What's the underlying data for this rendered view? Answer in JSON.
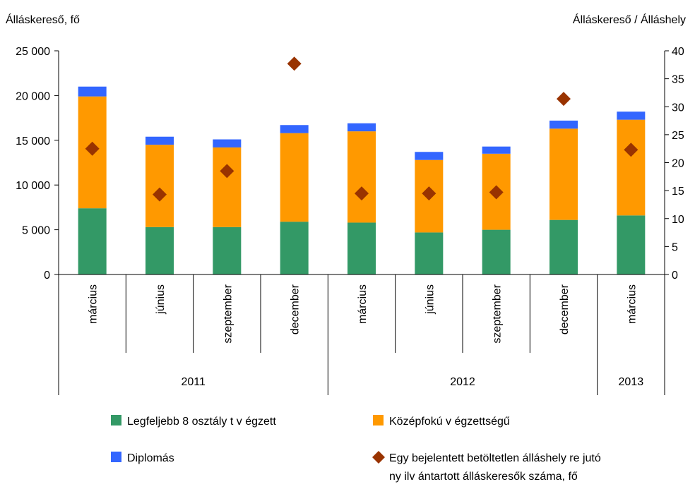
{
  "chart_data": {
    "type": "bar",
    "stacked": true,
    "y_left_label": "Álláskereső, fő",
    "y_right_label": "Álláskereső / Álláshely",
    "y_left_lim": [
      0,
      25000
    ],
    "y_left_ticks": [
      0,
      5000,
      10000,
      15000,
      20000,
      25000
    ],
    "y_left_tick_labels": [
      "0",
      "5 000",
      "10 000",
      "15 000",
      "20 000",
      "25 000"
    ],
    "y_right_lim": [
      0,
      40
    ],
    "y_right_ticks": [
      0,
      5,
      10,
      15,
      20,
      25,
      30,
      35,
      40
    ],
    "y_right_tick_labels": [
      "0",
      "5",
      "10",
      "15",
      "20",
      "25",
      "30",
      "35",
      "40"
    ],
    "categories": [
      "március",
      "június",
      "szeptember",
      "december",
      "március",
      "június",
      "szeptember",
      "december",
      "március"
    ],
    "year_groups": [
      {
        "label": "2011",
        "count": 4
      },
      {
        "label": "2012",
        "count": 4
      },
      {
        "label": "2013",
        "count": 1
      }
    ],
    "series": [
      {
        "name": "Legfeljebb 8 osztályt végzett",
        "color": "#339966",
        "axis": "left",
        "kind": "bar",
        "values": [
          7400,
          5300,
          5300,
          5900,
          5800,
          4700,
          5000,
          6100,
          6600
        ]
      },
      {
        "name": "Középfokú végzettségű",
        "color": "#FF9900",
        "axis": "left",
        "kind": "bar",
        "values": [
          12500,
          9200,
          8900,
          9900,
          10200,
          8100,
          8500,
          10200,
          10700
        ]
      },
      {
        "name": "Diplomás",
        "color": "#3366FF",
        "axis": "left",
        "kind": "bar",
        "values": [
          1100,
          900,
          900,
          900,
          900,
          900,
          800,
          900,
          900
        ]
      },
      {
        "name": "Egy bejelentett betöltetlen álláshelyre jutó nyilvántartott álláskeresők száma, fő",
        "color": "#993300",
        "axis": "right",
        "kind": "marker",
        "values": [
          22.5,
          14.3,
          18.5,
          37.7,
          14.5,
          14.5,
          14.7,
          31.4,
          22.3
        ]
      }
    ],
    "legend": {
      "placement": "bottom",
      "items": [
        {
          "label": "Legfeljebb 8 osztály t v égzett",
          "shape": "square",
          "color": "#339966"
        },
        {
          "label": "Középfokú v égzettségű",
          "shape": "square",
          "color": "#FF9900"
        },
        {
          "label": "Diplomás",
          "shape": "square",
          "color": "#3366FF"
        },
        {
          "label": [
            "Egy  bejelentett betöltetlen álláshely re jutó",
            "ny ilv ántartott álláskeresők száma, fő"
          ],
          "shape": "diamond",
          "color": "#993300"
        }
      ]
    },
    "grid": false
  }
}
